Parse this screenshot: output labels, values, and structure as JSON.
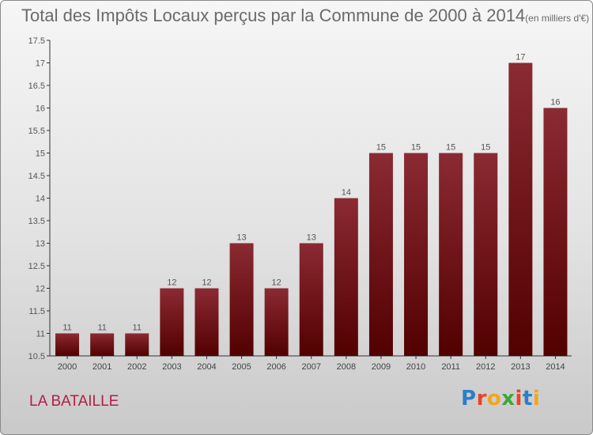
{
  "chart_data": {
    "type": "bar",
    "title": "Total des Impôts Locaux perçus par la Commune de 2000 à 2014",
    "unit": "(en milliers d'€)",
    "categories": [
      "2000",
      "2001",
      "2002",
      "2003",
      "2004",
      "2005",
      "2006",
      "2007",
      "2008",
      "2009",
      "2010",
      "2011",
      "2012",
      "2013",
      "2014"
    ],
    "values": [
      11,
      11,
      11,
      12,
      12,
      13,
      12,
      13,
      14,
      15,
      15,
      15,
      15,
      17,
      16
    ],
    "data_labels": [
      "11",
      "11",
      "11",
      "12",
      "12",
      "13",
      "12",
      "13",
      "14",
      "15",
      "15",
      "15",
      "15",
      "17",
      "16"
    ],
    "ylim": [
      10.5,
      17.5
    ],
    "yticks": [
      10.5,
      11,
      11.5,
      12,
      12.5,
      13,
      13.5,
      14,
      14.5,
      15,
      15.5,
      16,
      16.5,
      17,
      17.5
    ],
    "ytick_labels": [
      "10.5",
      "11",
      "11.5",
      "12",
      "12.5",
      "13",
      "13.5",
      "14",
      "14.5",
      "15",
      "15.5",
      "16",
      "16.5",
      "17",
      "17.5"
    ],
    "xlabel": "",
    "ylabel": "",
    "grid": false,
    "bar_color_top": "#8b2a33",
    "bar_color_bottom": "#520000"
  },
  "commune_name": "LA BATAILLE",
  "logo": {
    "text": "Proxiti",
    "letter_colors": [
      "#2a7fc8",
      "#e8432a",
      "#f2a51a",
      "#3aa83a",
      "#e8432a",
      "#2a7fc8",
      "#f2a51a"
    ]
  }
}
